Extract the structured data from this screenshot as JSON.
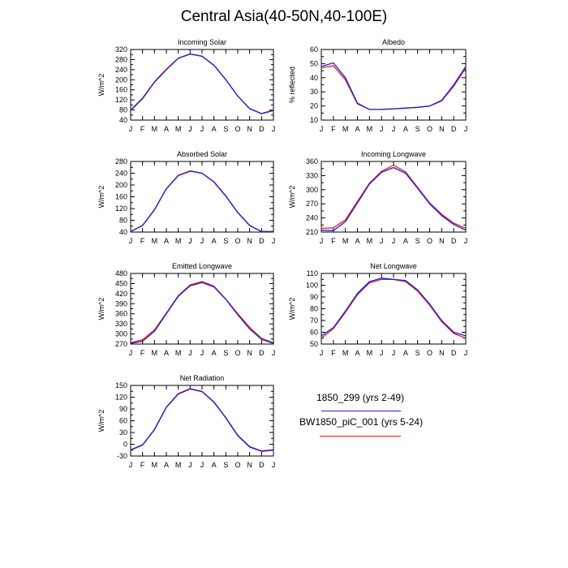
{
  "title": "Central Asia(40-50N,40-100E)",
  "colors": {
    "series_1": "#1f1fdd",
    "series_2": "#e02020"
  },
  "legend": [
    {
      "label": "1850_299 (yrs 2-49)",
      "color": "#1f1fdd"
    },
    {
      "label": "BW1850_piC_001 (yrs 5-24)",
      "color": "#e02020"
    }
  ],
  "chart_data": [
    {
      "type": "line",
      "title": "Incoming Solar",
      "ylabel": "W/m^2",
      "categories": [
        "J",
        "F",
        "M",
        "A",
        "M",
        "J",
        "J",
        "A",
        "S",
        "O",
        "N",
        "D",
        "J"
      ],
      "ylim": [
        40,
        320
      ],
      "yticks": [
        40,
        80,
        120,
        160,
        200,
        240,
        280,
        320
      ],
      "series": [
        {
          "name": "1850_299 (yrs 2-49)",
          "values": [
            78,
            125,
            190,
            240,
            285,
            302,
            293,
            257,
            200,
            135,
            85,
            65,
            78
          ]
        },
        {
          "name": "BW1850_piC_001 (yrs 5-24)",
          "values": [
            80,
            128,
            192,
            242,
            286,
            302,
            294,
            258,
            201,
            136,
            86,
            66,
            80
          ]
        }
      ]
    },
    {
      "type": "line",
      "title": "Albedo",
      "ylabel": "% reflected",
      "categories": [
        "J",
        "F",
        "M",
        "A",
        "M",
        "J",
        "J",
        "A",
        "S",
        "O",
        "N",
        "D",
        "J"
      ],
      "ylim": [
        10,
        60
      ],
      "yticks": [
        10,
        20,
        30,
        40,
        50,
        60
      ],
      "series": [
        {
          "name": "1850_299 (yrs 2-49)",
          "values": [
            48,
            50.5,
            40,
            22,
            17.5,
            17.6,
            18,
            18.5,
            19,
            20,
            24,
            35,
            48
          ]
        },
        {
          "name": "BW1850_piC_001 (yrs 5-24)",
          "values": [
            47,
            48.5,
            38.5,
            21.5,
            17.5,
            17.6,
            18,
            18.5,
            19,
            20,
            23.5,
            34,
            47
          ]
        }
      ]
    },
    {
      "type": "line",
      "title": "Absorbed Solar",
      "ylabel": "W/m^2",
      "categories": [
        "J",
        "F",
        "M",
        "A",
        "M",
        "J",
        "J",
        "A",
        "S",
        "O",
        "N",
        "D",
        "J"
      ],
      "ylim": [
        40,
        280
      ],
      "yticks": [
        40,
        80,
        120,
        160,
        200,
        240,
        280
      ],
      "series": [
        {
          "name": "1850_299 (yrs 2-49)",
          "values": [
            42,
            62,
            115,
            187,
            232,
            247,
            240,
            210,
            162,
            106,
            62,
            42,
            42
          ]
        },
        {
          "name": "BW1850_piC_001 (yrs 5-24)",
          "values": [
            42,
            63,
            116,
            188,
            233,
            248,
            240,
            211,
            163,
            107,
            63,
            42,
            42
          ]
        }
      ]
    },
    {
      "type": "line",
      "title": "Incoming Longwave",
      "ylabel": "W/m^2",
      "categories": [
        "J",
        "F",
        "M",
        "A",
        "M",
        "J",
        "J",
        "A",
        "S",
        "O",
        "N",
        "D",
        "J"
      ],
      "ylim": [
        210,
        360
      ],
      "yticks": [
        210,
        240,
        270,
        300,
        330,
        360
      ],
      "series": [
        {
          "name": "1850_299 (yrs 2-49)",
          "values": [
            214,
            213,
            232,
            272,
            312,
            337,
            347,
            335,
            303,
            270,
            245,
            226,
            214
          ]
        },
        {
          "name": "BW1850_piC_001 (yrs 5-24)",
          "values": [
            218,
            219,
            236,
            275,
            314,
            339,
            352,
            338,
            305,
            272,
            248,
            229,
            218
          ]
        }
      ]
    },
    {
      "type": "line",
      "title": "Emitted Longwave",
      "ylabel": "W/m^2",
      "categories": [
        "J",
        "F",
        "M",
        "A",
        "M",
        "J",
        "J",
        "A",
        "S",
        "O",
        "N",
        "D",
        "J"
      ],
      "ylim": [
        270,
        480
      ],
      "yticks": [
        270,
        300,
        330,
        360,
        390,
        420,
        450,
        480
      ],
      "series": [
        {
          "name": "1850_299 (yrs 2-49)",
          "values": [
            272,
            278,
            308,
            360,
            412,
            443,
            453,
            440,
            403,
            357,
            315,
            284,
            272
          ]
        },
        {
          "name": "BW1850_piC_001 (yrs 5-24)",
          "values": [
            274,
            283,
            312,
            362,
            414,
            446,
            456,
            442,
            404,
            360,
            320,
            287,
            274
          ]
        }
      ]
    },
    {
      "type": "line",
      "title": "Net Longwave",
      "ylabel": "W/m^2",
      "categories": [
        "J",
        "F",
        "M",
        "A",
        "M",
        "J",
        "J",
        "A",
        "S",
        "O",
        "N",
        "D",
        "J"
      ],
      "ylim": [
        50,
        110
      ],
      "yticks": [
        50,
        60,
        70,
        80,
        90,
        100,
        110
      ],
      "series": [
        {
          "name": "1850_299 (yrs 2-49)",
          "values": [
            57,
            64,
            78,
            93,
            103,
            106,
            105,
            104,
            96,
            84,
            70,
            60,
            57
          ]
        },
        {
          "name": "BW1850_piC_001 (yrs 5-24)",
          "values": [
            55,
            63,
            77,
            92,
            102,
            105,
            105,
            103,
            95,
            83,
            69,
            59,
            55
          ]
        }
      ]
    },
    {
      "type": "line",
      "title": "Net Radiation",
      "ylabel": "W/m^2",
      "categories": [
        "J",
        "F",
        "M",
        "A",
        "M",
        "J",
        "J",
        "A",
        "S",
        "O",
        "N",
        "D",
        "J"
      ],
      "ylim": [
        -30,
        150
      ],
      "yticks": [
        -30,
        0,
        30,
        60,
        90,
        120,
        150
      ],
      "series": [
        {
          "name": "1850_299 (yrs 2-49)",
          "values": [
            -15,
            -2,
            37,
            94,
            128,
            141,
            134,
            107,
            67,
            22,
            -7,
            -18,
            -15
          ]
        },
        {
          "name": "BW1850_piC_001 (yrs 5-24)",
          "values": [
            -14,
            -1,
            38,
            95,
            129,
            142,
            135,
            108,
            68,
            23,
            -6,
            -17,
            -14
          ]
        }
      ]
    }
  ]
}
